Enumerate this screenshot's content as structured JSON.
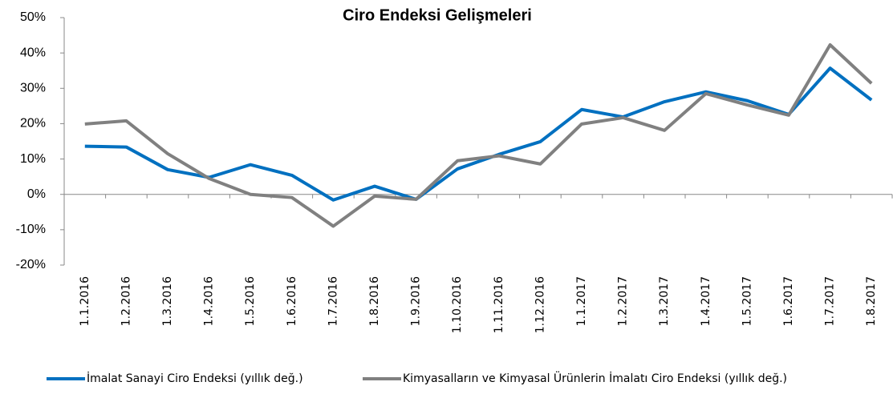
{
  "chart_data": {
    "type": "line",
    "title": "Ciro Endeksi Gelişmeleri",
    "categories": [
      "1.1.2016",
      "1.2.2016",
      "1.3.2016",
      "1.4.2016",
      "1.5.2016",
      "1.6.2016",
      "1.7.2016",
      "1.8.2016",
      "1.9.2016",
      "1.10.2016",
      "1.11.2016",
      "1.12.2016",
      "1.1.2017",
      "1.2.2017",
      "1.3.2017",
      "1.4.2017",
      "1.5.2017",
      "1.6.2017",
      "1.7.2017",
      "1.8.2017"
    ],
    "series": [
      {
        "name": "İmalat Sanayi Ciro Endeksi (yıllık değ.)",
        "color": "#0070c0",
        "values": [
          13.6,
          13.4,
          7.0,
          4.8,
          8.4,
          5.4,
          -1.6,
          2.3,
          -1.4,
          7.2,
          11.3,
          14.9,
          24.0,
          21.9,
          26.2,
          29.0,
          26.5,
          22.6,
          35.7,
          26.7
        ]
      },
      {
        "name": "Kimyasalların ve Kimyasal Ürünlerin İmalatı Ciro Endeksi (yıllık değ.)",
        "color": "#808080",
        "values": [
          19.9,
          20.8,
          11.5,
          4.5,
          0,
          -0.9,
          -9.0,
          -0.5,
          -1.4,
          9.5,
          10.9,
          8.6,
          19.9,
          21.7,
          18.1,
          28.5,
          25.3,
          22.4,
          42.3,
          31.4
        ]
      }
    ],
    "ylim": [
      -20,
      50
    ],
    "yticks": [
      {
        "value": -20,
        "label": "-20%"
      },
      {
        "value": -10,
        "label": "-10%"
      },
      {
        "value": 0,
        "label": "0%"
      },
      {
        "value": 10,
        "label": "10%"
      },
      {
        "value": 20,
        "label": "20%"
      },
      {
        "value": 30,
        "label": "30%"
      },
      {
        "value": 40,
        "label": "40%"
      },
      {
        "value": 50,
        "label": "50%"
      }
    ],
    "grid": false,
    "legend": "bottom"
  }
}
